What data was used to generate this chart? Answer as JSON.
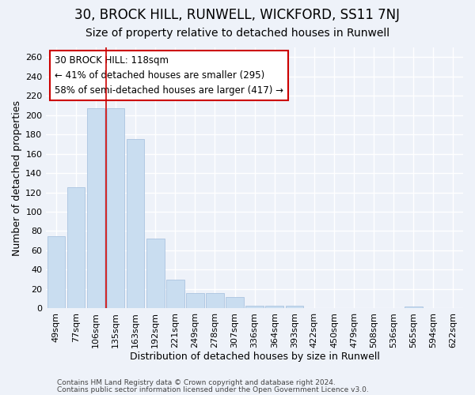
{
  "title1": "30, BROCK HILL, RUNWELL, WICKFORD, SS11 7NJ",
  "title2": "Size of property relative to detached houses in Runwell",
  "xlabel": "Distribution of detached houses by size in Runwell",
  "ylabel": "Number of detached properties",
  "categories": [
    "49sqm",
    "77sqm",
    "106sqm",
    "135sqm",
    "163sqm",
    "192sqm",
    "221sqm",
    "249sqm",
    "278sqm",
    "307sqm",
    "336sqm",
    "364sqm",
    "393sqm",
    "422sqm",
    "450sqm",
    "479sqm",
    "508sqm",
    "536sqm",
    "565sqm",
    "594sqm",
    "622sqm"
  ],
  "values": [
    75,
    125,
    207,
    207,
    175,
    72,
    30,
    16,
    16,
    12,
    3,
    3,
    3,
    0,
    0,
    0,
    0,
    0,
    2,
    0,
    0
  ],
  "bar_color": "#c9ddf0",
  "bar_edge_color": "#aac4e0",
  "vline_x": 2.5,
  "vline_color": "#cc0000",
  "annotation_text": "30 BROCK HILL: 118sqm\n← 41% of detached houses are smaller (295)\n58% of semi-detached houses are larger (417) →",
  "annotation_box_color": "#ffffff",
  "annotation_box_edge": "#cc0000",
  "ylim": [
    0,
    270
  ],
  "yticks": [
    0,
    20,
    40,
    60,
    80,
    100,
    120,
    140,
    160,
    180,
    200,
    220,
    240,
    260
  ],
  "footer1": "Contains HM Land Registry data © Crown copyright and database right 2024.",
  "footer2": "Contains public sector information licensed under the Open Government Licence v3.0.",
  "bg_color": "#eef2f9",
  "plot_bg_color": "#eef2f9",
  "grid_color": "#ffffff",
  "title1_fontsize": 12,
  "title2_fontsize": 10,
  "xlabel_fontsize": 9,
  "ylabel_fontsize": 9,
  "tick_fontsize": 8,
  "annotation_fontsize": 8.5,
  "footer_fontsize": 6.5
}
